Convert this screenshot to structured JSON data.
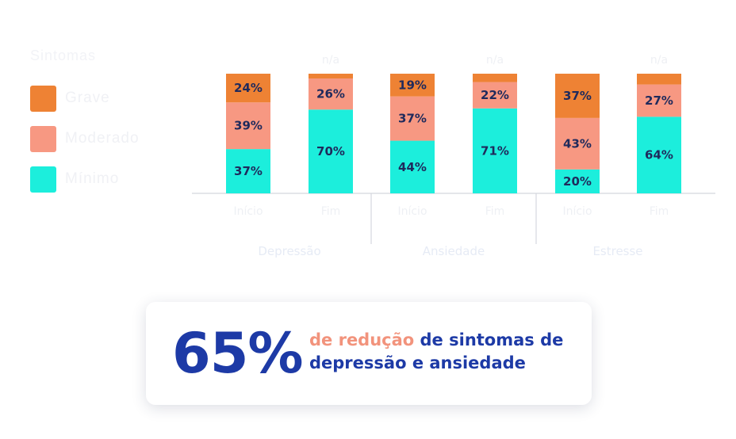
{
  "legend": {
    "title": "Sintomas",
    "items": [
      {
        "label": "Grave",
        "color": "#ee8234"
      },
      {
        "label": "Moderado",
        "color": "#f79882"
      },
      {
        "label": "Mínimo",
        "color": "#1ceedc"
      }
    ]
  },
  "chart_data": {
    "type": "bar",
    "stacked": true,
    "title": "",
    "xlabel": "",
    "ylabel": "",
    "ylim": [
      0,
      100
    ],
    "unit": "%",
    "groups": [
      "Depressão",
      "Ansiedade",
      "Estresse"
    ],
    "categories": [
      "Início",
      "Fim",
      "Início",
      "Fim",
      "Início",
      "Fim"
    ],
    "top_labels": [
      "",
      "n/a",
      "",
      "n/a",
      "",
      "n/a"
    ],
    "series": [
      {
        "name": "Mínimo",
        "color": "#1ceedc",
        "values": [
          37,
          70,
          44,
          71,
          20,
          64
        ]
      },
      {
        "name": "Moderado",
        "color": "#f79882",
        "values": [
          39,
          26,
          37,
          22,
          43,
          27
        ]
      },
      {
        "name": "Grave",
        "color": "#ee8234",
        "values": [
          24,
          4,
          19,
          7,
          37,
          9
        ]
      }
    ],
    "show_value_labels_min": 10
  },
  "highlight": {
    "number": "65%",
    "accent_text": "de redução",
    "text": " de sintomas de depressão e ansiedade"
  }
}
